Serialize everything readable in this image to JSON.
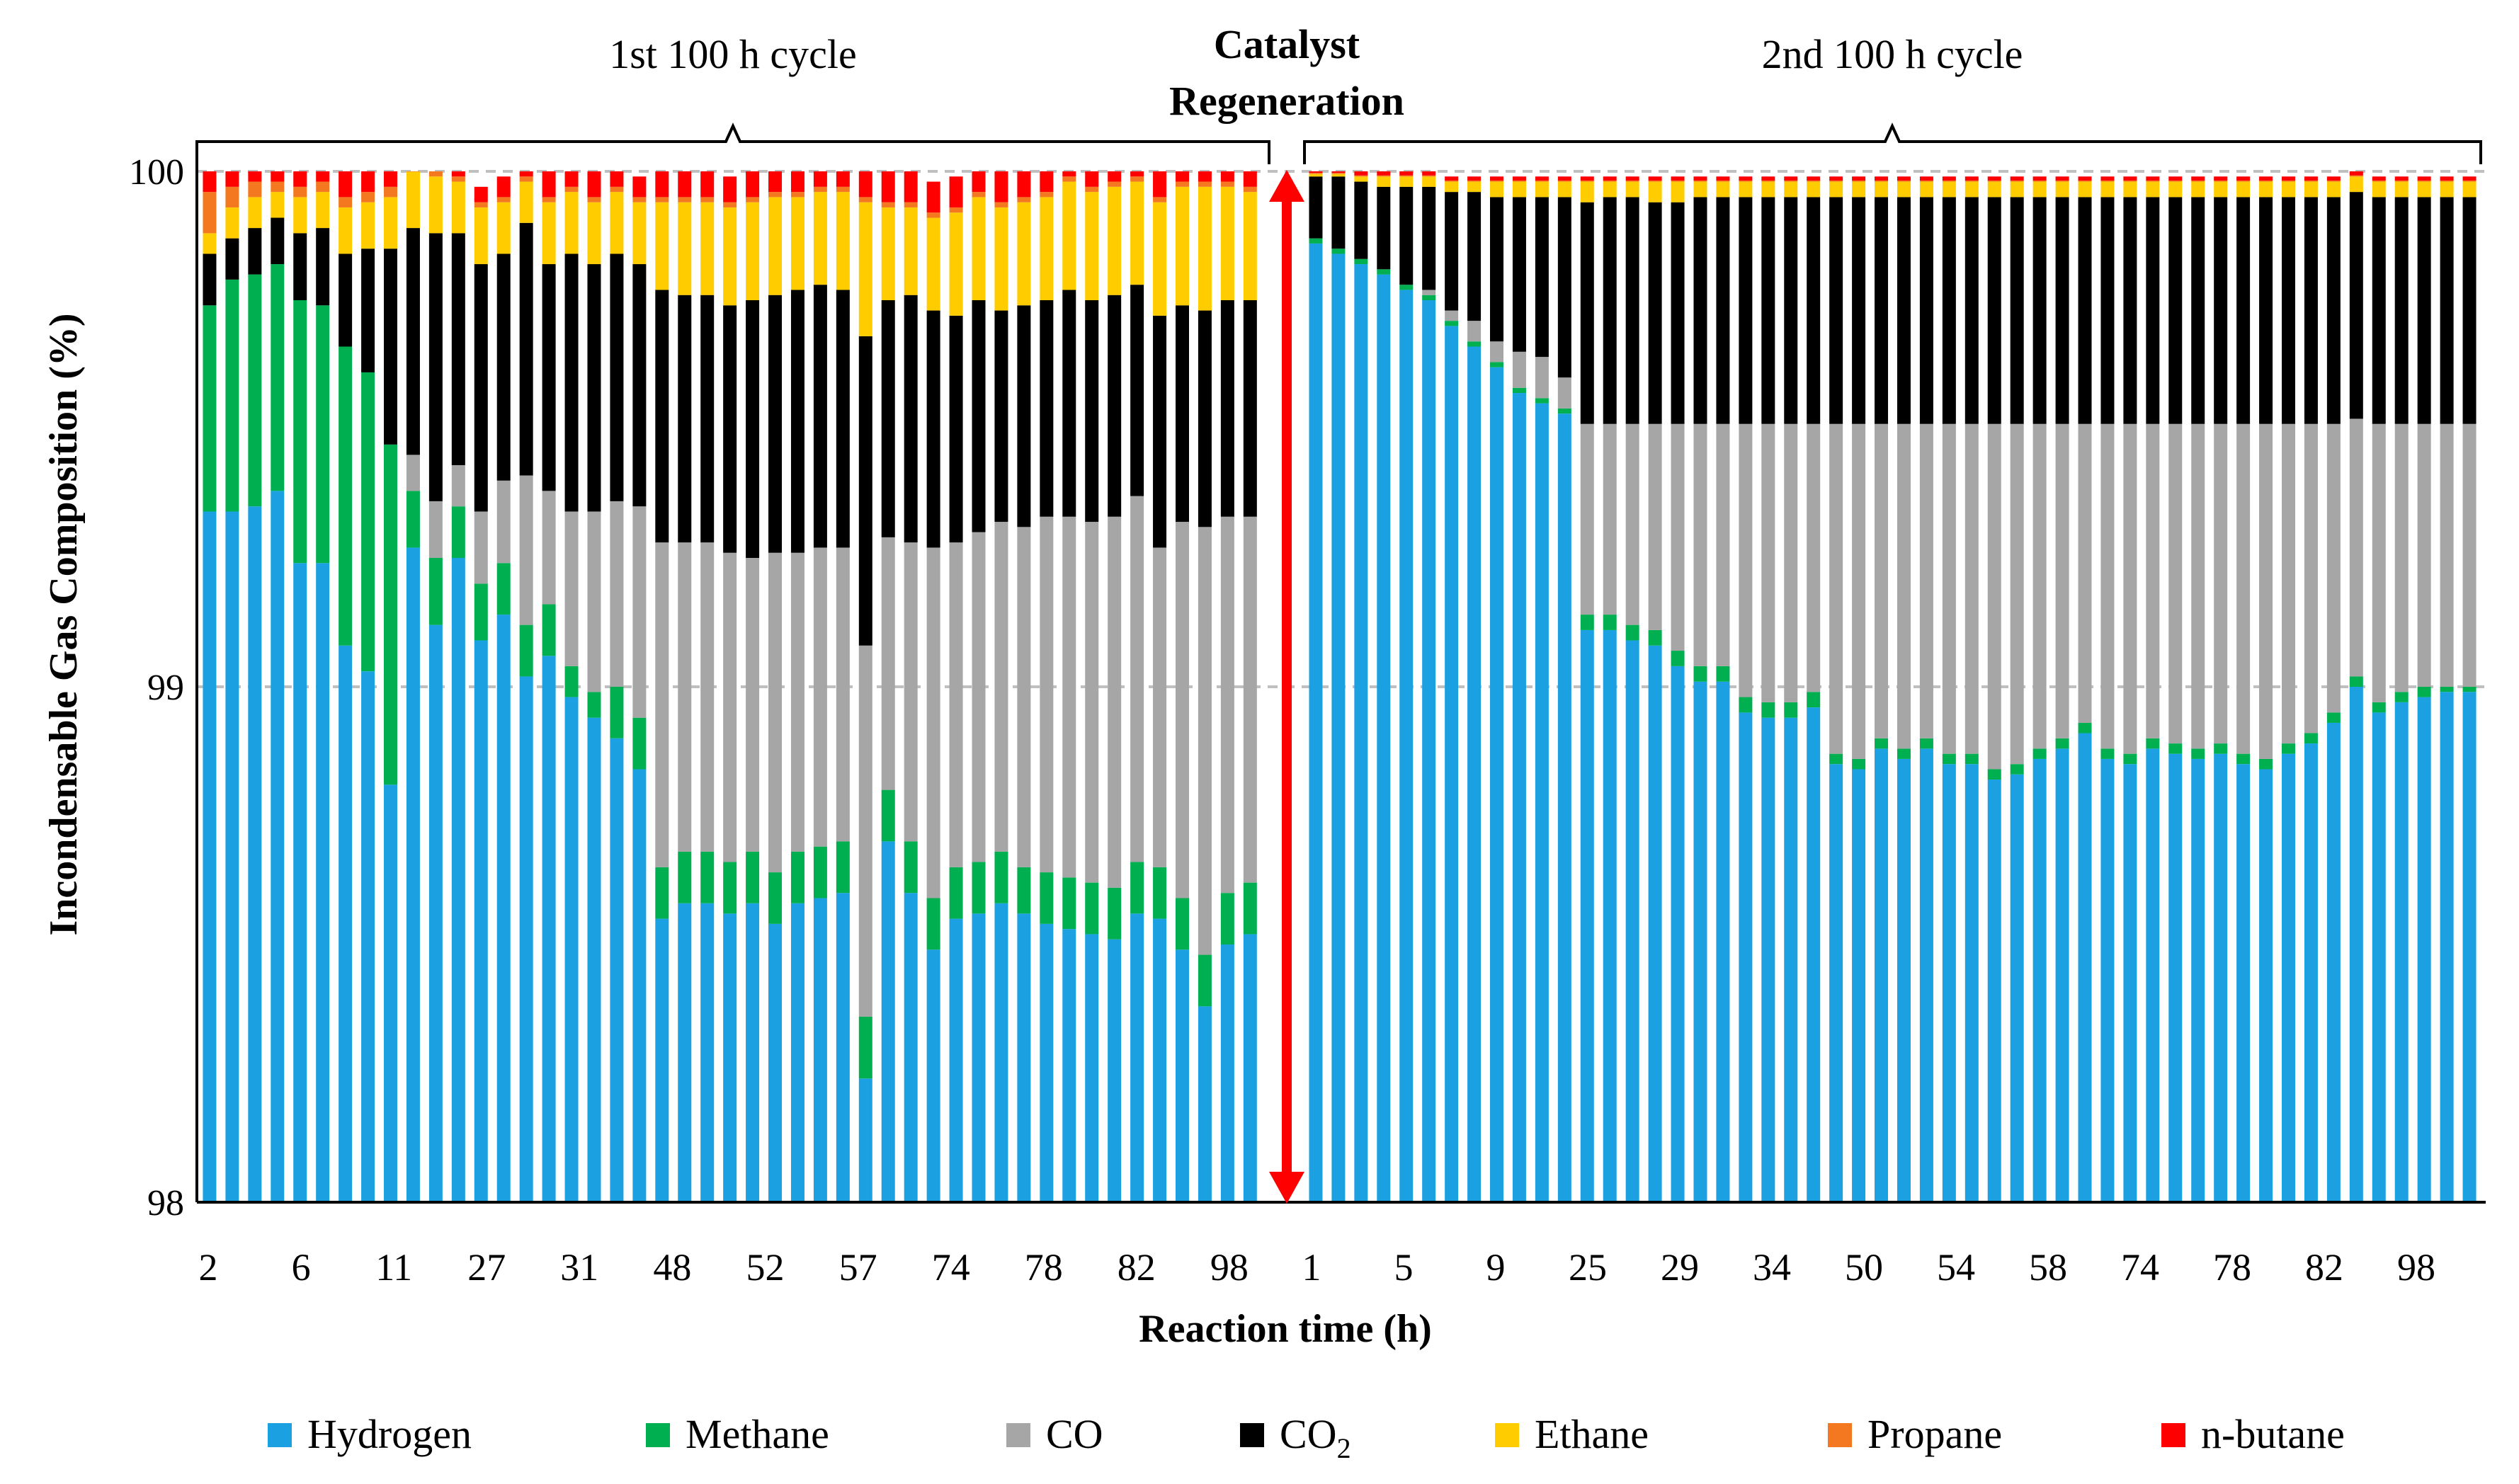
{
  "chart_data": {
    "type": "bar",
    "stacked": true,
    "title": "",
    "xlabel": "Reaction time (h)",
    "ylabel": "Incondensable Gas Composition (%)",
    "ylim": [
      98,
      100
    ],
    "y_ticks": [
      "98",
      "99",
      "100"
    ],
    "gridlines": [
      99,
      100
    ],
    "annotations": {
      "cycle1": "1st 100 h cycle",
      "regen_line1": "Catalyst",
      "regen_line2": "Regeneration",
      "cycle2": "2nd 100 h cycle"
    },
    "legend": [
      {
        "name": "Hydrogen",
        "color": "#1BA1E2"
      },
      {
        "name": "Methane",
        "color": "#00B050"
      },
      {
        "name": "CO",
        "color": "#A6A6A6"
      },
      {
        "name": "CO2",
        "color": "#000000"
      },
      {
        "name": "Ethane",
        "color": "#FFCC00"
      },
      {
        "name": "Propane",
        "color": "#F47820"
      },
      {
        "name": "n-butane",
        "color": "#FF0000"
      }
    ],
    "legend_placement": "bottom",
    "x_tick_labels": {
      "cycle1": [
        "2",
        "6",
        "11",
        "27",
        "31",
        "48",
        "52",
        "57",
        "74",
        "78",
        "82",
        "98"
      ],
      "cycle2": [
        "1",
        "5",
        "9",
        "25",
        "29",
        "34",
        "50",
        "54",
        "58",
        "74",
        "78",
        "82",
        "98"
      ]
    },
    "cycle1": {
      "hydrogen": [
        99.34,
        99.34,
        99.35,
        99.38,
        99.24,
        99.24,
        99.08,
        99.03,
        98.81,
        99.27,
        99.12,
        99.25,
        99.09,
        99.14,
        99.02,
        99.06,
        98.98,
        98.94,
        98.9,
        98.84,
        98.55,
        98.58,
        98.58,
        98.56,
        98.58,
        98.54,
        98.58,
        98.59,
        98.6,
        98.24,
        98.7,
        98.6,
        98.49,
        98.55,
        98.56,
        98.58,
        98.56,
        98.54,
        98.53,
        98.52,
        98.51,
        98.56,
        98.55,
        98.49,
        98.38,
        98.5,
        98.52
      ],
      "methane": [
        0.4,
        0.45,
        0.45,
        0.44,
        0.51,
        0.5,
        0.58,
        0.58,
        0.66,
        0.11,
        0.13,
        0.1,
        0.11,
        0.1,
        0.1,
        0.1,
        0.06,
        0.05,
        0.1,
        0.1,
        0.1,
        0.1,
        0.1,
        0.1,
        0.1,
        0.1,
        0.1,
        0.1,
        0.1,
        0.12,
        0.1,
        0.1,
        0.1,
        0.1,
        0.1,
        0.1,
        0.09,
        0.1,
        0.1,
        0.1,
        0.1,
        0.1,
        0.1,
        0.1,
        0.1,
        0.1,
        0.1
      ],
      "co": [
        0,
        0,
        0,
        0,
        0,
        0,
        0,
        0,
        0,
        0.07,
        0.11,
        0.08,
        0.14,
        0.16,
        0.29,
        0.22,
        0.3,
        0.35,
        0.36,
        0.41,
        0.63,
        0.6,
        0.6,
        0.6,
        0.57,
        0.62,
        0.58,
        0.58,
        0.57,
        0.72,
        0.49,
        0.58,
        0.68,
        0.63,
        0.64,
        0.64,
        0.66,
        0.69,
        0.7,
        0.7,
        0.72,
        0.71,
        0.62,
        0.73,
        0.83,
        0.73,
        0.71
      ],
      "co2": [
        0.1,
        0.08,
        0.09,
        0.09,
        0.13,
        0.15,
        0.18,
        0.24,
        0.38,
        0.44,
        0.52,
        0.45,
        0.48,
        0.44,
        0.49,
        0.44,
        0.5,
        0.48,
        0.48,
        0.47,
        0.49,
        0.48,
        0.48,
        0.48,
        0.5,
        0.5,
        0.51,
        0.51,
        0.5,
        0.6,
        0.46,
        0.48,
        0.46,
        0.44,
        0.45,
        0.41,
        0.43,
        0.42,
        0.44,
        0.43,
        0.43,
        0.41,
        0.45,
        0.42,
        0.42,
        0.42,
        0.42
      ],
      "ethane": [
        0.04,
        0.06,
        0.06,
        0.05,
        0.07,
        0.07,
        0.09,
        0.09,
        0.1,
        0.11,
        0.11,
        0.1,
        0.11,
        0.1,
        0.08,
        0.12,
        0.12,
        0.12,
        0.12,
        0.12,
        0.17,
        0.18,
        0.18,
        0.19,
        0.19,
        0.19,
        0.18,
        0.18,
        0.19,
        0.26,
        0.18,
        0.17,
        0.18,
        0.2,
        0.2,
        0.2,
        0.2,
        0.2,
        0.21,
        0.21,
        0.21,
        0.2,
        0.22,
        0.23,
        0.24,
        0.22,
        0.21
      ],
      "propane": [
        0.08,
        0.04,
        0.03,
        0.02,
        0.02,
        0.02,
        0.02,
        0.02,
        0.02,
        0.02,
        0.01,
        0.01,
        0.01,
        0.01,
        0.01,
        0.01,
        0.01,
        0.01,
        0.01,
        0.01,
        0.01,
        0.01,
        0.01,
        0.01,
        0.01,
        0.01,
        0.01,
        0.01,
        0.01,
        0.01,
        0.01,
        0.01,
        0.01,
        0.01,
        0.01,
        0.01,
        0.01,
        0.01,
        0.01,
        0.01,
        0.01,
        0.01,
        0.01,
        0.01,
        0.01,
        0.01,
        0.01
      ],
      "nbutane": [
        0.04,
        0.03,
        0.02,
        0.02,
        0.03,
        0.02,
        0.05,
        0.04,
        0.03,
        0.05,
        0.03,
        0.03,
        0.03,
        0.04,
        0.05,
        0.05,
        0.05,
        0.05,
        0.04,
        0.04,
        0.05,
        0.05,
        0.05,
        0.05,
        0.05,
        0.05,
        0.04,
        0.04,
        0.04,
        0.05,
        0.06,
        0.06,
        0.06,
        0.06,
        0.05,
        0.06,
        0.06,
        0.06,
        0.07,
        0.06,
        0.05,
        0.06,
        0.06,
        0.04,
        0.05,
        0.05,
        0.06
      ]
    },
    "cycle2": {
      "hydrogen": [
        99.86,
        99.84,
        99.82,
        99.8,
        99.77,
        99.75,
        99.7,
        99.66,
        99.62,
        99.57,
        99.55,
        99.53,
        99.11,
        99.11,
        99.09,
        99.08,
        99.04,
        99.01,
        99.01,
        98.95,
        98.94,
        98.94,
        98.96,
        98.85,
        98.84,
        98.88,
        98.86,
        98.88,
        98.85,
        98.85,
        98.82,
        98.83,
        98.86,
        98.88,
        98.91,
        98.86,
        98.85,
        98.88,
        98.87,
        98.86,
        98.87,
        98.85,
        98.84,
        98.87,
        98.89,
        98.93,
        99.0,
        98.95,
        98.97,
        98.98,
        98.99,
        98.99
      ],
      "methane": [
        0.01,
        0.01,
        0.01,
        0.01,
        0.01,
        0.01,
        0.01,
        0.01,
        0.01,
        0.01,
        0.01,
        0.01,
        0.03,
        0.03,
        0.03,
        0.03,
        0.03,
        0.03,
        0.03,
        0.03,
        0.03,
        0.03,
        0.03,
        0.02,
        0.02,
        0.02,
        0.02,
        0.02,
        0.02,
        0.02,
        0.02,
        0.02,
        0.02,
        0.02,
        0.02,
        0.02,
        0.02,
        0.02,
        0.02,
        0.02,
        0.02,
        0.02,
        0.02,
        0.02,
        0.02,
        0.02,
        0.02,
        0.02,
        0.02,
        0.02,
        0.01,
        0.01
      ],
      "co": [
        0,
        0,
        0,
        0,
        0,
        0.01,
        0.02,
        0.04,
        0.04,
        0.07,
        0.08,
        0.06,
        0.37,
        0.37,
        0.39,
        0.4,
        0.44,
        0.47,
        0.47,
        0.53,
        0.54,
        0.54,
        0.52,
        0.64,
        0.65,
        0.61,
        0.63,
        0.61,
        0.64,
        0.64,
        0.67,
        0.66,
        0.63,
        0.61,
        0.58,
        0.63,
        0.64,
        0.61,
        0.62,
        0.63,
        0.62,
        0.64,
        0.65,
        0.62,
        0.6,
        0.56,
        0.5,
        0.54,
        0.52,
        0.51,
        0.51,
        0.51
      ],
      "co2": [
        0.12,
        0.14,
        0.15,
        0.16,
        0.19,
        0.2,
        0.23,
        0.25,
        0.28,
        0.3,
        0.31,
        0.35,
        0.43,
        0.44,
        0.44,
        0.43,
        0.43,
        0.44,
        0.44,
        0.44,
        0.44,
        0.44,
        0.44,
        0.44,
        0.44,
        0.44,
        0.44,
        0.44,
        0.44,
        0.44,
        0.44,
        0.44,
        0.44,
        0.44,
        0.44,
        0.44,
        0.44,
        0.44,
        0.44,
        0.44,
        0.44,
        0.44,
        0.44,
        0.44,
        0.44,
        0.44,
        0.44,
        0.44,
        0.44,
        0.44,
        0.44,
        0.44
      ],
      "ethane": [
        0.005,
        0.005,
        0.01,
        0.02,
        0.02,
        0.02,
        0.02,
        0.02,
        0.03,
        0.03,
        0.03,
        0.03,
        0.04,
        0.03,
        0.03,
        0.04,
        0.04,
        0.03,
        0.03,
        0.03,
        0.03,
        0.03,
        0.03,
        0.03,
        0.03,
        0.03,
        0.03,
        0.03,
        0.03,
        0.03,
        0.03,
        0.03,
        0.03,
        0.03,
        0.03,
        0.03,
        0.03,
        0.03,
        0.03,
        0.03,
        0.03,
        0.03,
        0.03,
        0.03,
        0.03,
        0.03,
        0.03,
        0.03,
        0.03,
        0.03,
        0.03,
        0.03
      ],
      "propane": [
        0.002,
        0.002,
        0.002,
        0.002,
        0.002,
        0.002,
        0.002,
        0.002,
        0.002,
        0.002,
        0.002,
        0.002,
        0.002,
        0.002,
        0.002,
        0.002,
        0.002,
        0.002,
        0.002,
        0.002,
        0.002,
        0.002,
        0.002,
        0.002,
        0.002,
        0.002,
        0.002,
        0.002,
        0.002,
        0.002,
        0.002,
        0.002,
        0.002,
        0.002,
        0.002,
        0.002,
        0.002,
        0.002,
        0.002,
        0.002,
        0.002,
        0.002,
        0.002,
        0.002,
        0.002,
        0.002,
        0.002,
        0.002,
        0.002,
        0.002,
        0.002,
        0.002
      ],
      "nbutane": [
        0.008,
        0.008,
        0.008,
        0.008,
        0.008,
        0.008,
        0.008,
        0.008,
        0.008,
        0.008,
        0.008,
        0.008,
        0.008,
        0.008,
        0.008,
        0.008,
        0.008,
        0.008,
        0.008,
        0.008,
        0.008,
        0.008,
        0.008,
        0.008,
        0.008,
        0.008,
        0.008,
        0.008,
        0.008,
        0.008,
        0.008,
        0.008,
        0.008,
        0.008,
        0.008,
        0.008,
        0.008,
        0.008,
        0.008,
        0.008,
        0.008,
        0.008,
        0.008,
        0.008,
        0.008,
        0.008,
        0.008,
        0.008,
        0.008,
        0.008,
        0.008,
        0.008
      ]
    }
  }
}
